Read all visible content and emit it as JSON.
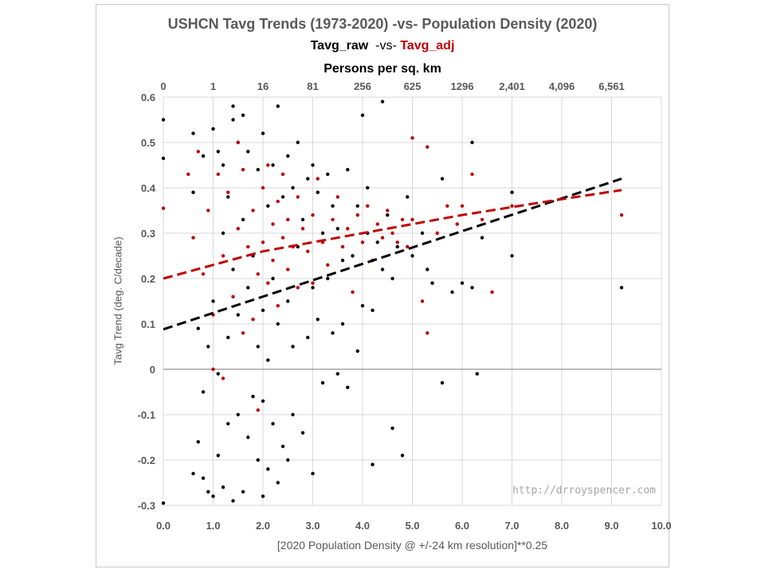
{
  "chart_data": {
    "type": "scatter",
    "title": "USHCN Tavg Trends (1973-2020) -vs- Population Density (2020)",
    "subtitle_parts": [
      "Tavg_raw",
      "-vs-",
      "Tavg_adj"
    ],
    "top_axis_label": "Persons per sq. km",
    "top_ticks": [
      {
        "x": 0,
        "label": "0"
      },
      {
        "x": 1,
        "label": "1"
      },
      {
        "x": 2,
        "label": "16"
      },
      {
        "x": 3,
        "label": "81"
      },
      {
        "x": 4,
        "label": "256"
      },
      {
        "x": 5,
        "label": "625"
      },
      {
        "x": 6,
        "label": "1296"
      },
      {
        "x": 7,
        "label": "2,401"
      },
      {
        "x": 8,
        "label": "4,096"
      },
      {
        "x": 9,
        "label": "6,561"
      }
    ],
    "xlabel": "[2020 Population Density @ +/-24 km resolution]**0.25",
    "ylabel": "Tavg Trend (deg. C/decade)",
    "xlim": [
      0,
      10
    ],
    "ylim": [
      -0.3,
      0.6
    ],
    "x_ticks": [
      "0.0",
      "1.0",
      "2.0",
      "3.0",
      "4.0",
      "5.0",
      "6.0",
      "7.0",
      "8.0",
      "9.0",
      "10.0"
    ],
    "y_ticks": [
      "-0.3",
      "-0.2",
      "-0.1",
      "0",
      "0.1",
      "0.2",
      "0.3",
      "0.4",
      "0.5",
      "0.6"
    ],
    "grid": true,
    "watermark": "http://drroyspencer.com",
    "series": [
      {
        "name": "Tavg_raw",
        "color": "#000000",
        "trend_line": {
          "x": [
            0,
            9.2
          ],
          "y": [
            0.088,
            0.42
          ]
        },
        "points": [
          [
            0.0,
            0.55
          ],
          [
            0.0,
            0.465
          ],
          [
            0.0,
            -0.295
          ],
          [
            0.6,
            0.52
          ],
          [
            0.6,
            -0.23
          ],
          [
            0.6,
            0.39
          ],
          [
            0.7,
            -0.16
          ],
          [
            0.7,
            0.09
          ],
          [
            0.8,
            0.47
          ],
          [
            0.8,
            -0.24
          ],
          [
            0.8,
            -0.05
          ],
          [
            0.9,
            -0.27
          ],
          [
            0.9,
            0.05
          ],
          [
            1.0,
            0.53
          ],
          [
            1.0,
            -0.28
          ],
          [
            1.0,
            0.15
          ],
          [
            1.1,
            0.48
          ],
          [
            1.1,
            -0.19
          ],
          [
            1.1,
            -0.01
          ],
          [
            1.2,
            0.45
          ],
          [
            1.2,
            0.3
          ],
          [
            1.2,
            -0.26
          ],
          [
            1.3,
            0.38
          ],
          [
            1.3,
            -0.12
          ],
          [
            1.3,
            0.07
          ],
          [
            1.4,
            0.58
          ],
          [
            1.4,
            0.55
          ],
          [
            1.4,
            0.22
          ],
          [
            1.4,
            -0.29
          ],
          [
            1.5,
            0.5
          ],
          [
            1.5,
            -0.1
          ],
          [
            1.5,
            0.12
          ],
          [
            1.6,
            0.56
          ],
          [
            1.6,
            0.33
          ],
          [
            1.6,
            -0.27
          ],
          [
            1.7,
            0.48
          ],
          [
            1.7,
            0.18
          ],
          [
            1.7,
            -0.15
          ],
          [
            1.8,
            0.25
          ],
          [
            1.8,
            -0.06
          ],
          [
            1.9,
            0.44
          ],
          [
            1.9,
            -0.2
          ],
          [
            1.9,
            0.05
          ],
          [
            2.0,
            0.52
          ],
          [
            2.0,
            -0.28
          ],
          [
            2.0,
            0.13
          ],
          [
            2.0,
            -0.07
          ],
          [
            2.1,
            0.36
          ],
          [
            2.1,
            -0.22
          ],
          [
            2.1,
            0.02
          ],
          [
            2.2,
            0.45
          ],
          [
            2.2,
            0.2
          ],
          [
            2.2,
            -0.12
          ],
          [
            2.3,
            0.58
          ],
          [
            2.3,
            -0.25
          ],
          [
            2.3,
            0.1
          ],
          [
            2.4,
            0.38
          ],
          [
            2.4,
            -0.17
          ],
          [
            2.5,
            0.47
          ],
          [
            2.5,
            0.15
          ],
          [
            2.5,
            -0.2
          ],
          [
            2.6,
            0.4
          ],
          [
            2.6,
            0.05
          ],
          [
            2.6,
            -0.1
          ],
          [
            2.7,
            0.5
          ],
          [
            2.7,
            0.27
          ],
          [
            2.8,
            0.33
          ],
          [
            2.8,
            -0.14
          ],
          [
            2.9,
            0.42
          ],
          [
            2.9,
            0.07
          ],
          [
            3.0,
            0.45
          ],
          [
            3.0,
            -0.23
          ],
          [
            3.0,
            0.18
          ],
          [
            3.1,
            0.39
          ],
          [
            3.1,
            0.11
          ],
          [
            3.2,
            0.3
          ],
          [
            3.2,
            -0.03
          ],
          [
            3.3,
            0.43
          ],
          [
            3.3,
            0.2
          ],
          [
            3.4,
            0.36
          ],
          [
            3.4,
            0.08
          ],
          [
            3.5,
            0.31
          ],
          [
            3.5,
            -0.01
          ],
          [
            3.6,
            0.24
          ],
          [
            3.6,
            0.1
          ],
          [
            3.7,
            0.44
          ],
          [
            3.7,
            -0.04
          ],
          [
            3.8,
            0.25
          ],
          [
            3.9,
            0.36
          ],
          [
            3.9,
            0.04
          ],
          [
            4.0,
            0.56
          ],
          [
            4.0,
            0.14
          ],
          [
            4.1,
            0.4
          ],
          [
            4.1,
            0.3
          ],
          [
            4.2,
            0.13
          ],
          [
            4.2,
            -0.21
          ],
          [
            4.3,
            0.28
          ],
          [
            4.4,
            0.59
          ],
          [
            4.4,
            0.22
          ],
          [
            4.5,
            0.34
          ],
          [
            4.6,
            -0.13
          ],
          [
            4.6,
            0.2
          ],
          [
            4.7,
            0.27
          ],
          [
            4.8,
            -0.19
          ],
          [
            4.9,
            0.38
          ],
          [
            5.0,
            0.25
          ],
          [
            5.2,
            0.3
          ],
          [
            5.3,
            0.22
          ],
          [
            5.4,
            0.19
          ],
          [
            5.6,
            0.42
          ],
          [
            5.6,
            -0.03
          ],
          [
            5.8,
            0.17
          ],
          [
            6.0,
            0.19
          ],
          [
            6.2,
            0.5
          ],
          [
            6.2,
            0.18
          ],
          [
            6.3,
            -0.01
          ],
          [
            6.4,
            0.29
          ],
          [
            7.0,
            0.25
          ],
          [
            7.0,
            0.39
          ],
          [
            9.2,
            0.18
          ]
        ]
      },
      {
        "name": "Tavg_adj",
        "color": "#c00000",
        "trend_line": {
          "x": [
            0,
            2.0,
            4.0,
            6.0,
            8.0,
            9.2
          ],
          "y": [
            0.2,
            0.26,
            0.3,
            0.34,
            0.375,
            0.395
          ]
        },
        "points": [
          [
            0.0,
            0.355
          ],
          [
            0.5,
            0.43
          ],
          [
            0.6,
            0.29
          ],
          [
            0.7,
            0.48
          ],
          [
            0.8,
            0.21
          ],
          [
            0.9,
            0.35
          ],
          [
            1.0,
            0.12
          ],
          [
            1.0,
            0.0
          ],
          [
            1.1,
            0.43
          ],
          [
            1.2,
            0.25
          ],
          [
            1.2,
            -0.02
          ],
          [
            1.3,
            0.39
          ],
          [
            1.4,
            0.16
          ],
          [
            1.5,
            0.5
          ],
          [
            1.5,
            0.31
          ],
          [
            1.6,
            0.08
          ],
          [
            1.6,
            0.44
          ],
          [
            1.7,
            0.27
          ],
          [
            1.8,
            0.35
          ],
          [
            1.8,
            0.11
          ],
          [
            1.9,
            0.21
          ],
          [
            1.9,
            -0.09
          ],
          [
            2.0,
            0.4
          ],
          [
            2.0,
            0.28
          ],
          [
            2.1,
            0.19
          ],
          [
            2.1,
            0.45
          ],
          [
            2.2,
            0.32
          ],
          [
            2.2,
            0.24
          ],
          [
            2.3,
            0.14
          ],
          [
            2.3,
            0.37
          ],
          [
            2.4,
            0.29
          ],
          [
            2.4,
            0.43
          ],
          [
            2.5,
            0.22
          ],
          [
            2.5,
            0.33
          ],
          [
            2.6,
            0.27
          ],
          [
            2.7,
            0.38
          ],
          [
            2.7,
            0.18
          ],
          [
            2.8,
            0.31
          ],
          [
            2.9,
            0.26
          ],
          [
            3.0,
            0.34
          ],
          [
            3.0,
            0.19
          ],
          [
            3.1,
            0.42
          ],
          [
            3.2,
            0.28
          ],
          [
            3.3,
            0.23
          ],
          [
            3.4,
            0.33
          ],
          [
            3.5,
            0.38
          ],
          [
            3.6,
            0.27
          ],
          [
            3.7,
            0.31
          ],
          [
            3.8,
            0.17
          ],
          [
            3.9,
            0.34
          ],
          [
            4.0,
            0.28
          ],
          [
            4.1,
            0.36
          ],
          [
            4.2,
            0.24
          ],
          [
            4.3,
            0.32
          ],
          [
            4.4,
            0.29
          ],
          [
            4.5,
            0.35
          ],
          [
            4.6,
            0.3
          ],
          [
            4.7,
            0.28
          ],
          [
            4.8,
            0.33
          ],
          [
            4.9,
            0.27
          ],
          [
            5.0,
            0.51
          ],
          [
            5.0,
            0.33
          ],
          [
            5.2,
            0.15
          ],
          [
            5.3,
            0.08
          ],
          [
            5.3,
            0.49
          ],
          [
            5.5,
            0.3
          ],
          [
            5.7,
            0.36
          ],
          [
            5.9,
            0.32
          ],
          [
            6.0,
            0.36
          ],
          [
            6.2,
            0.43
          ],
          [
            6.4,
            0.33
          ],
          [
            6.6,
            0.17
          ],
          [
            7.0,
            0.36
          ],
          [
            9.2,
            0.34
          ]
        ]
      }
    ]
  }
}
